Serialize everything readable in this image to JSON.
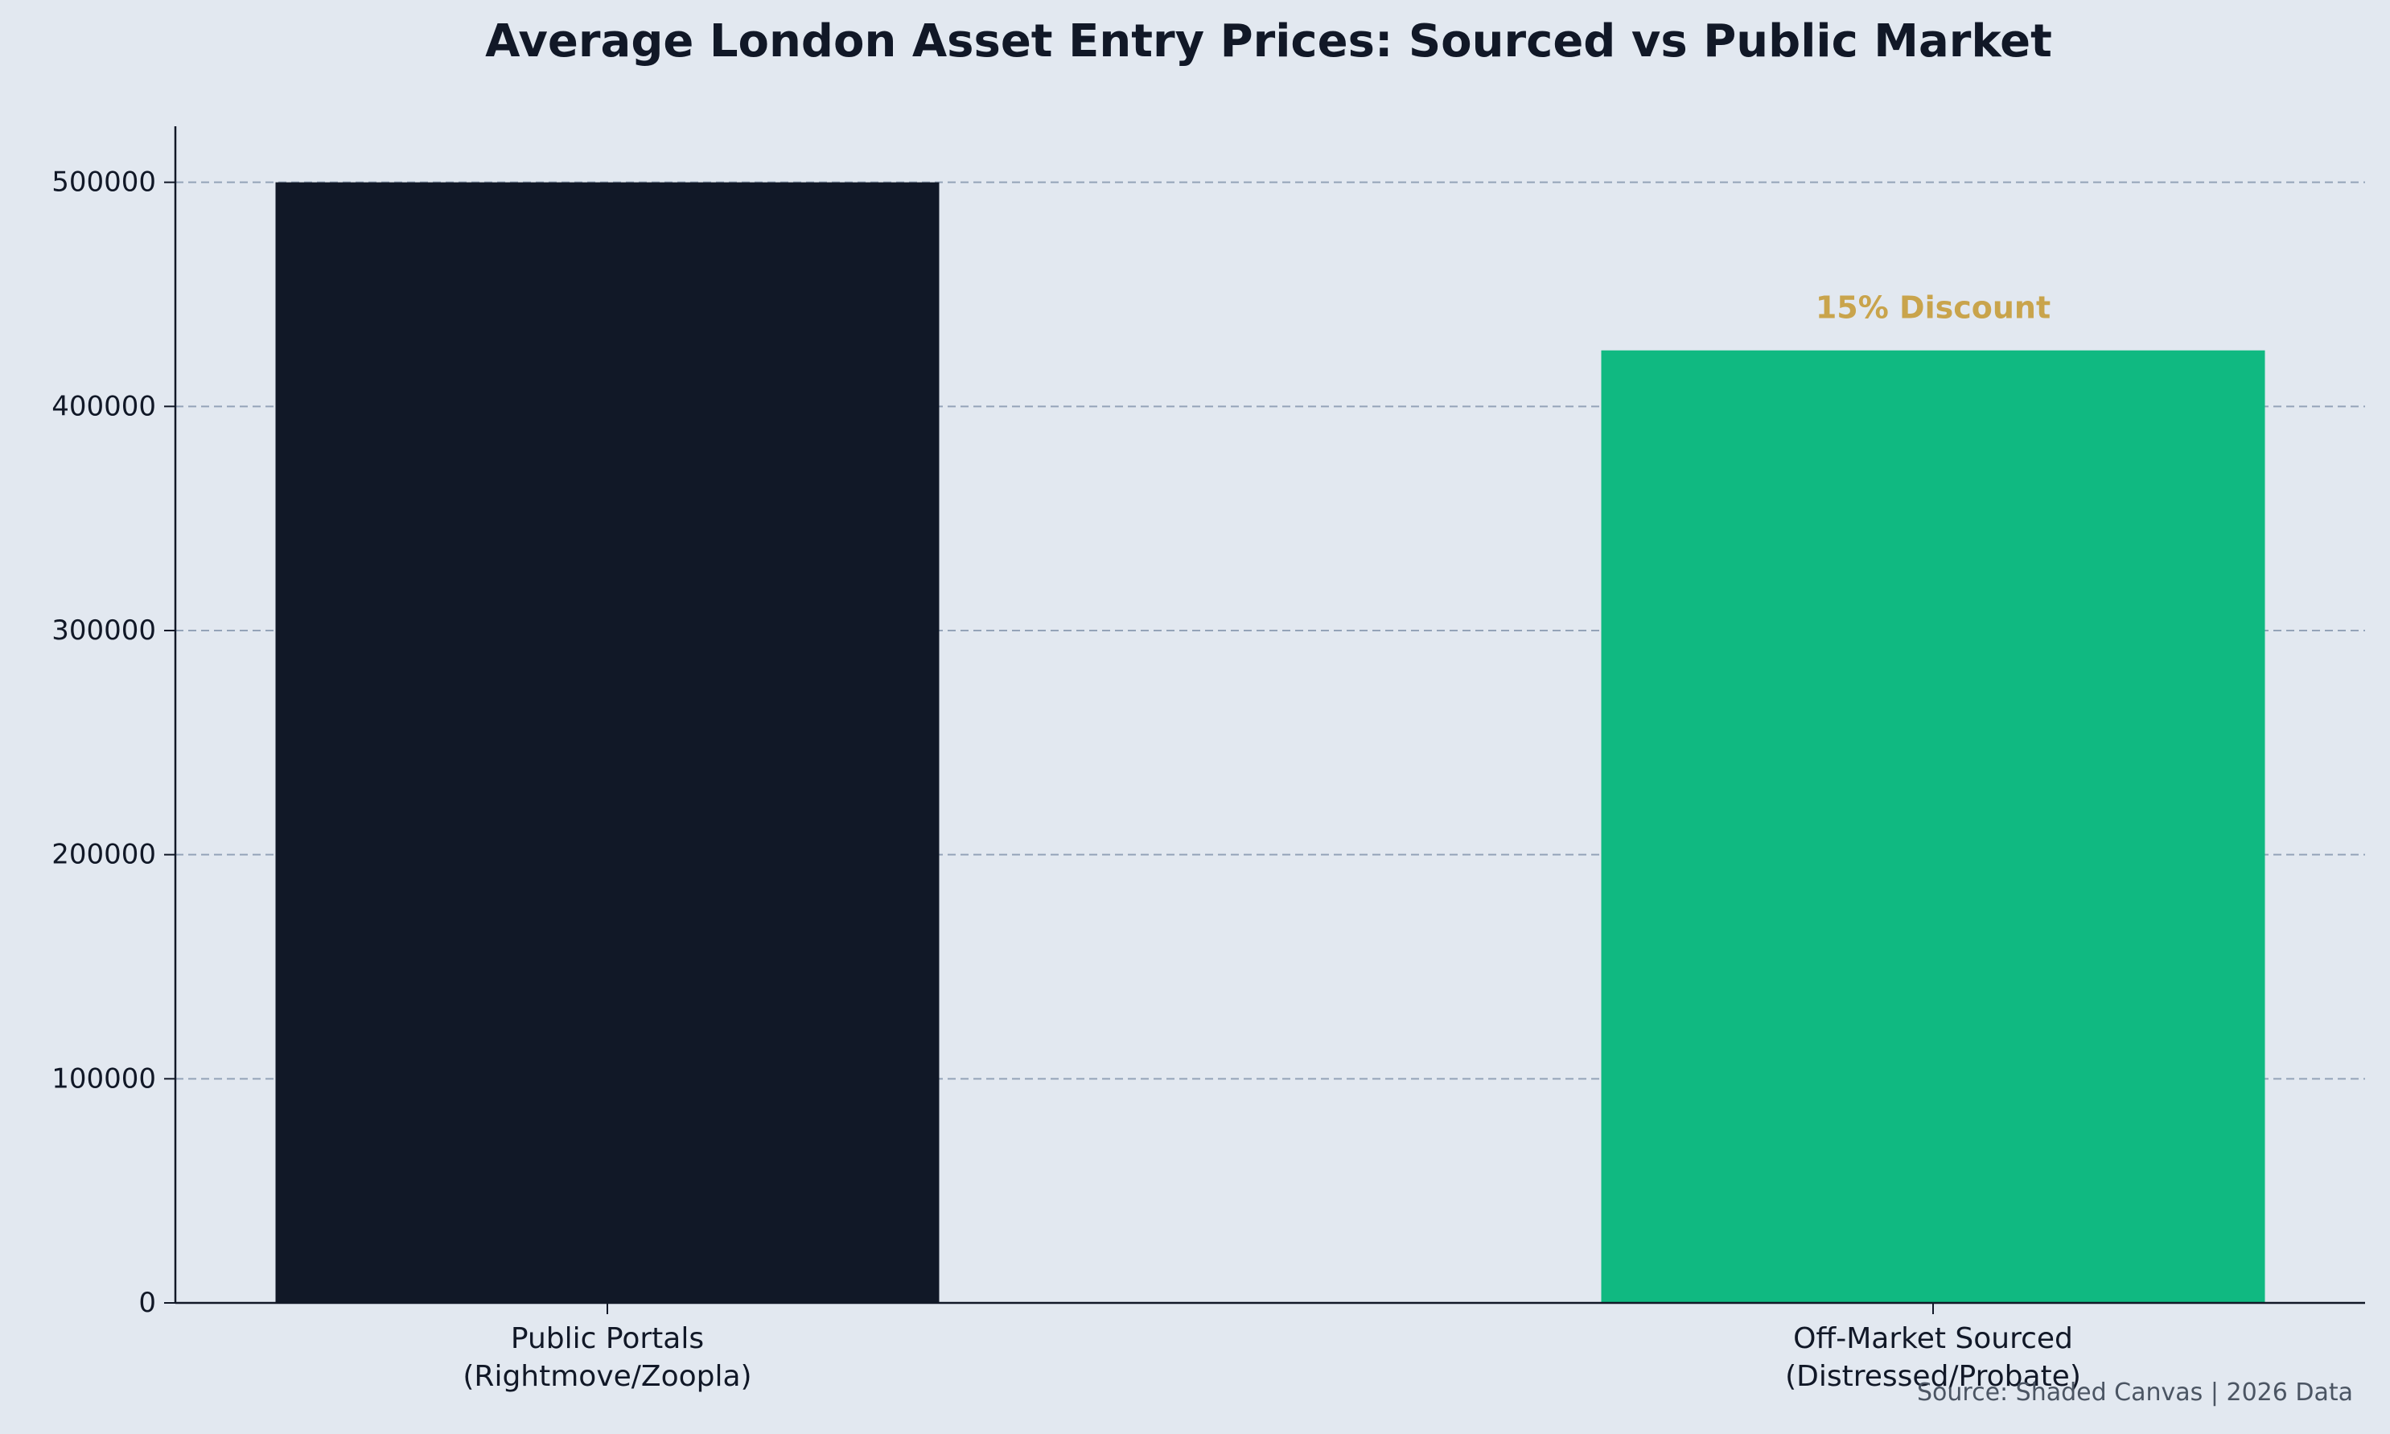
{
  "chart_data": {
    "type": "bar",
    "title": "Average London Asset Entry Prices: Sourced vs Public Market",
    "xlabel": "",
    "ylabel": "",
    "categories": [
      "Public Portals\n(Rightmove/Zoopla)",
      "Off-Market Sourced\n(Distressed/Probate)"
    ],
    "values": [
      500000,
      425000
    ],
    "bar_colors": [
      "#111827",
      "#10b981"
    ],
    "ylim": [
      0,
      525000
    ],
    "yticks": [
      0,
      100000,
      200000,
      300000,
      400000,
      500000
    ],
    "grid": true,
    "annotations": [
      {
        "category_index": 1,
        "text": "15% Discount",
        "color": "#c9a44c"
      }
    ],
    "source_note": "Source: Shaded Canvas | 2026 Data"
  },
  "colors": {
    "background": "#e2e8f0",
    "text": "#111827",
    "grid": "#94a3b8",
    "axis": "#111827",
    "note": "#4b5563"
  }
}
